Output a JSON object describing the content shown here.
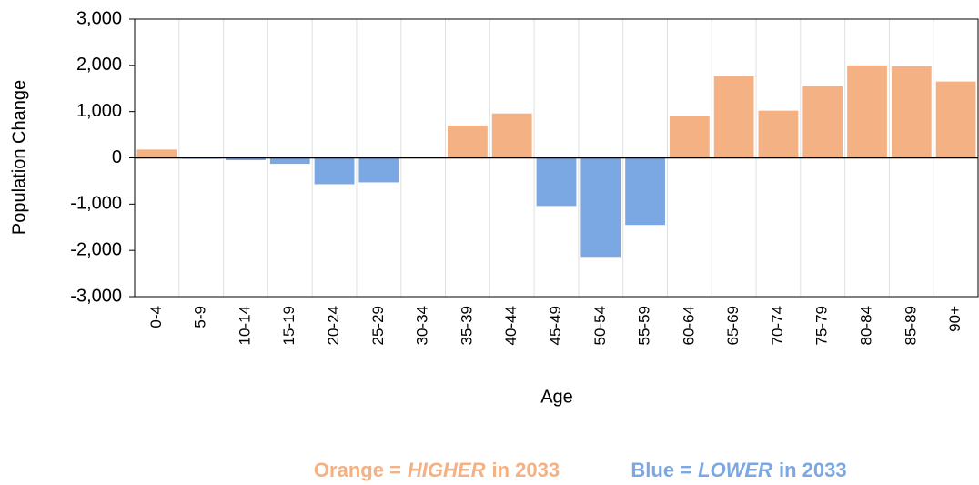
{
  "chart_data": {
    "type": "bar",
    "categories": [
      "0-4",
      "5-9",
      "10-14",
      "15-19",
      "20-24",
      "25-29",
      "30-34",
      "35-39",
      "40-44",
      "45-49",
      "50-54",
      "55-59",
      "60-64",
      "65-69",
      "70-74",
      "75-79",
      "80-84",
      "85-89",
      "90+"
    ],
    "values": [
      180,
      -20,
      -50,
      -130,
      -570,
      -530,
      -10,
      700,
      960,
      -1040,
      -2140,
      -1450,
      900,
      1760,
      1020,
      1550,
      2000,
      1980,
      1650
    ],
    "positive_color": "#f4b183",
    "negative_color": "#7ba7e2",
    "ylim": [
      -3000,
      3000
    ],
    "yticks": [
      {
        "value": -3000,
        "label": "-3,000"
      },
      {
        "value": -2000,
        "label": "-2,000"
      },
      {
        "value": -1000,
        "label": "-1,000"
      },
      0,
      {
        "value": 1000,
        "label": "1,000"
      },
      {
        "value": 2000,
        "label": "2,000"
      },
      {
        "value": 3000,
        "label": "3,000"
      }
    ],
    "x_label": "Age",
    "y_label": "Population Change",
    "annotations": [
      {
        "color": "#f4b183",
        "parts": [
          {
            "text": "Orange ="
          },
          {
            "text": "HIGHER",
            "italic": true
          },
          {
            "text": "in 2033"
          }
        ]
      },
      {
        "color": "#7ba7e2",
        "parts": [
          {
            "text": "Blue ="
          },
          {
            "text": "LOWER",
            "italic": true
          },
          {
            "text": "in 2033"
          }
        ]
      }
    ]
  }
}
